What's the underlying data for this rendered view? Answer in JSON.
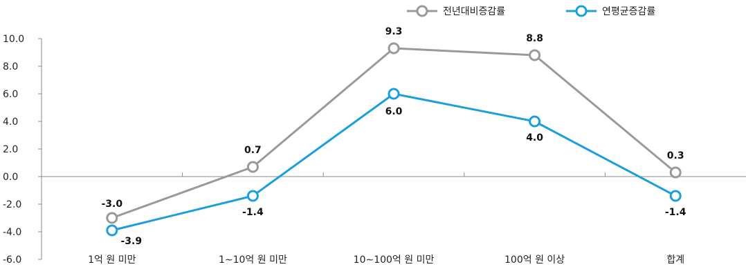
{
  "chart_data": {
    "type": "line",
    "categories": [
      "1억 원 미만",
      "1∼10억 원 미만",
      "10∼100억 원 미만",
      "100억 원 이상",
      "합계"
    ],
    "ylim": [
      -6,
      10
    ],
    "yticks": [
      "10.0",
      "8.0",
      "6.0",
      "4.0",
      "2.0",
      "0.0",
      "-2.0",
      "-4.0",
      "-6.0"
    ],
    "series": [
      {
        "name": "전년대비증감률",
        "values": [
          -3.0,
          0.7,
          9.3,
          8.8,
          0.3
        ],
        "labels": [
          "-3.0",
          "0.7",
          "9.3",
          "8.8",
          "0.3"
        ],
        "color": "#999999"
      },
      {
        "name": "연평균증감률",
        "values": [
          -3.9,
          -1.4,
          6.0,
          4.0,
          -1.4
        ],
        "labels": [
          "-3.9",
          "-1.4",
          "6.0",
          "4.0",
          "-1.4"
        ],
        "color": "#1a9fdc"
      }
    ],
    "legend_position": "top-right",
    "grid": false
  }
}
